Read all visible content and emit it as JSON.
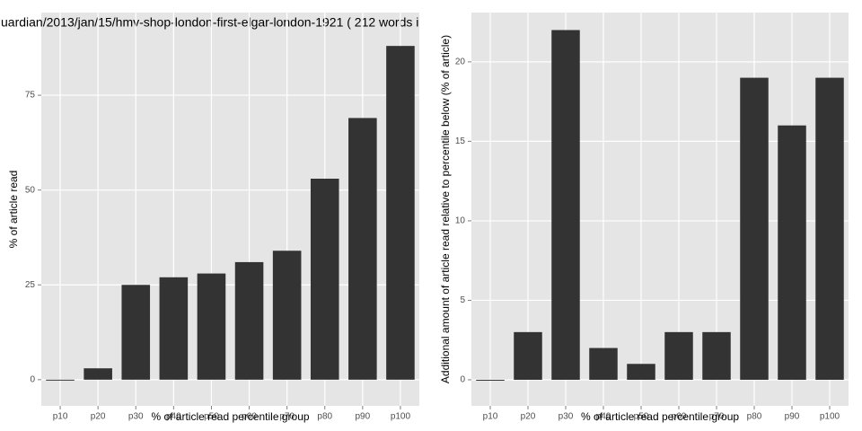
{
  "chart_data": [
    {
      "type": "bar",
      "title": "uardian/2013/jan/15/hmv-shop-london-first-elgar-london-1921 ( 212 words i",
      "x_label": "% of article read percentile group",
      "y_label": "% of article read",
      "categories": [
        "p10",
        "p20",
        "p30",
        "p40",
        "p50",
        "p60",
        "p70",
        "p80",
        "p90",
        "p100"
      ],
      "values": [
        0,
        3,
        25,
        27,
        28,
        31,
        34,
        53,
        69,
        88
      ],
      "color": "#333333",
      "ylim": [
        -6.9,
        96.8
      ],
      "yticks": [
        0,
        25,
        50,
        75
      ],
      "grid": true
    },
    {
      "type": "bar",
      "x_label": "% of article read percentile group",
      "y_label": "Additional amount of article read relative to percentile below (% of article)",
      "categories": [
        "p10",
        "p20",
        "p30",
        "p40",
        "p50",
        "p60",
        "p70",
        "p80",
        "p90",
        "p100"
      ],
      "values": [
        0,
        3,
        22,
        2,
        1,
        3,
        3,
        19,
        16,
        19
      ],
      "color": "#333333",
      "ylim": [
        -1.64,
        23.1
      ],
      "yticks": [
        0,
        5,
        10,
        15,
        20
      ],
      "grid": true
    }
  ]
}
